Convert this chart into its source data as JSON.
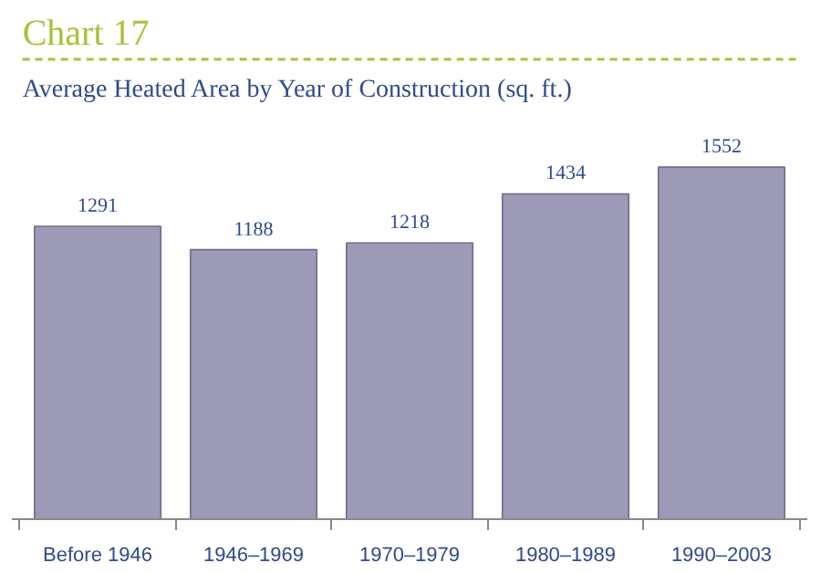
{
  "chart_data": {
    "type": "bar",
    "title": "Chart 17",
    "subtitle": "Average Heated Area by Year of Construction (sq. ft.)",
    "categories": [
      "Before 1946",
      "1946–1969",
      "1970–1979",
      "1980–1989",
      "1990–2003"
    ],
    "values": [
      1291,
      1188,
      1218,
      1434,
      1552
    ],
    "color": "#9d9ab8",
    "data_labels": true,
    "grid": false
  }
}
